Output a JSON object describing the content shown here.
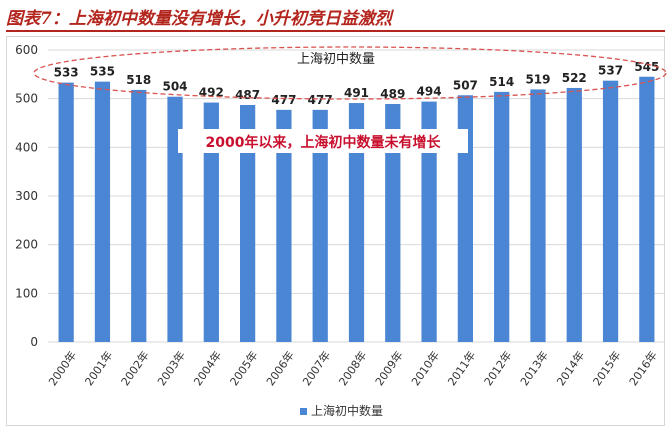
{
  "figure": {
    "title": "图表7：上海初中数量没有增长，小升初竞日益激烈"
  },
  "colors": {
    "bar": "#4a86d4",
    "title_red": "#b3261e",
    "annotation_red": "#c8102e",
    "ellipse": "#d9534f",
    "grid": "#d9d9d9"
  },
  "chart_data": {
    "type": "bar",
    "categories": [
      "2000年",
      "2001年",
      "2002年",
      "2003年",
      "2004年",
      "2005年",
      "2006年",
      "2007年",
      "2008年",
      "2009年",
      "2010年",
      "2011年",
      "2012年",
      "2013年",
      "2014年",
      "2015年",
      "2016年"
    ],
    "series": [
      {
        "name": "上海初中数量",
        "values": [
          533,
          535,
          518,
          504,
          492,
          487,
          477,
          477,
          491,
          489,
          494,
          507,
          514,
          519,
          522,
          537,
          545
        ]
      }
    ],
    "data_labels": [
      "533",
      "535",
      "518",
      "504",
      "492",
      "487",
      "477",
      "477",
      "491",
      "489",
      "494",
      "507",
      "514",
      "519",
      "522",
      "537",
      "545"
    ],
    "yticks": [
      "0",
      "100",
      "200",
      "300",
      "400",
      "500",
      "600"
    ],
    "ylim": [
      0,
      600
    ],
    "grid": "horizontal",
    "legend_position": "bottom",
    "inside_label": "上海初中数量",
    "annotation": "2000年以来，上海初中数量未有增长"
  }
}
